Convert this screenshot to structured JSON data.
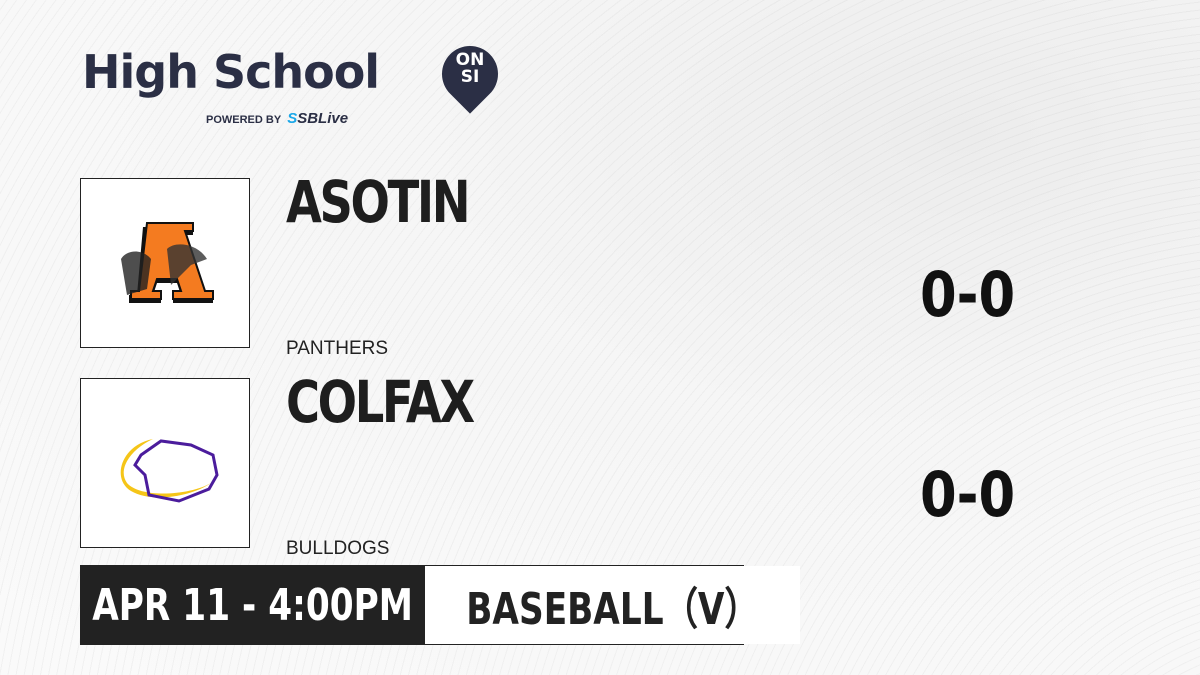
{
  "brand": {
    "title": "High School",
    "badge_top": "ON",
    "badge_bottom": "SI",
    "powered_by": "POWERED BY",
    "partner_s": "S",
    "partner": "SBLive"
  },
  "teams": [
    {
      "name": "ASOTIN",
      "mascot": "PANTHERS",
      "record": "0-0",
      "logo": "asotin-panther-logo",
      "colors": [
        "#f47b20",
        "#111111"
      ]
    },
    {
      "name": "COLFAX",
      "mascot": "BULLDOGS",
      "record": "0-0",
      "logo": "colfax-bulldog-logo",
      "colors": [
        "#4b1c9c",
        "#f5c518"
      ]
    }
  ],
  "game": {
    "datetime": "APR 11 - 4:00PM",
    "sport": "BASEBALL（V）"
  }
}
